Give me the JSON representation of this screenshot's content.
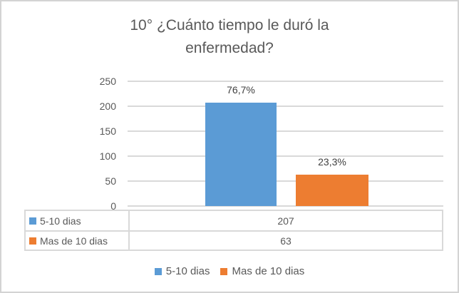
{
  "chart_data": {
    "type": "bar",
    "title": "10° ¿Cuánto tiempo le duró la enfermedad?",
    "categories": [
      ""
    ],
    "series": [
      {
        "name": "5-10 dias",
        "values": [
          207
        ],
        "data_label": "76,7%",
        "color": "#5B9BD5"
      },
      {
        "name": "Mas de 10 dias",
        "values": [
          63
        ],
        "data_label": "23,3%",
        "color": "#ED7D31"
      }
    ],
    "xlabel": "",
    "ylabel": "",
    "ylim": [
      0,
      250
    ],
    "yticks": [
      0,
      50,
      100,
      150,
      200,
      250
    ],
    "grid": true,
    "legend_position": "bottom",
    "legend": [
      "5-10 dias",
      "Mas de 10 dias"
    ],
    "data_table": {
      "rows": [
        {
          "label": "5-10 dias",
          "value": "207"
        },
        {
          "label": "Mas de 10 dias",
          "value": "63"
        }
      ]
    }
  },
  "styles": {
    "background": "#ffffff",
    "chart_border_color": "#d3d3d3",
    "title_color": "#595959",
    "axis_text_color": "#595959",
    "data_label_color": "#404040",
    "gridline_color": "#d9d9d9",
    "table_border_color": "#d9d9d9"
  }
}
